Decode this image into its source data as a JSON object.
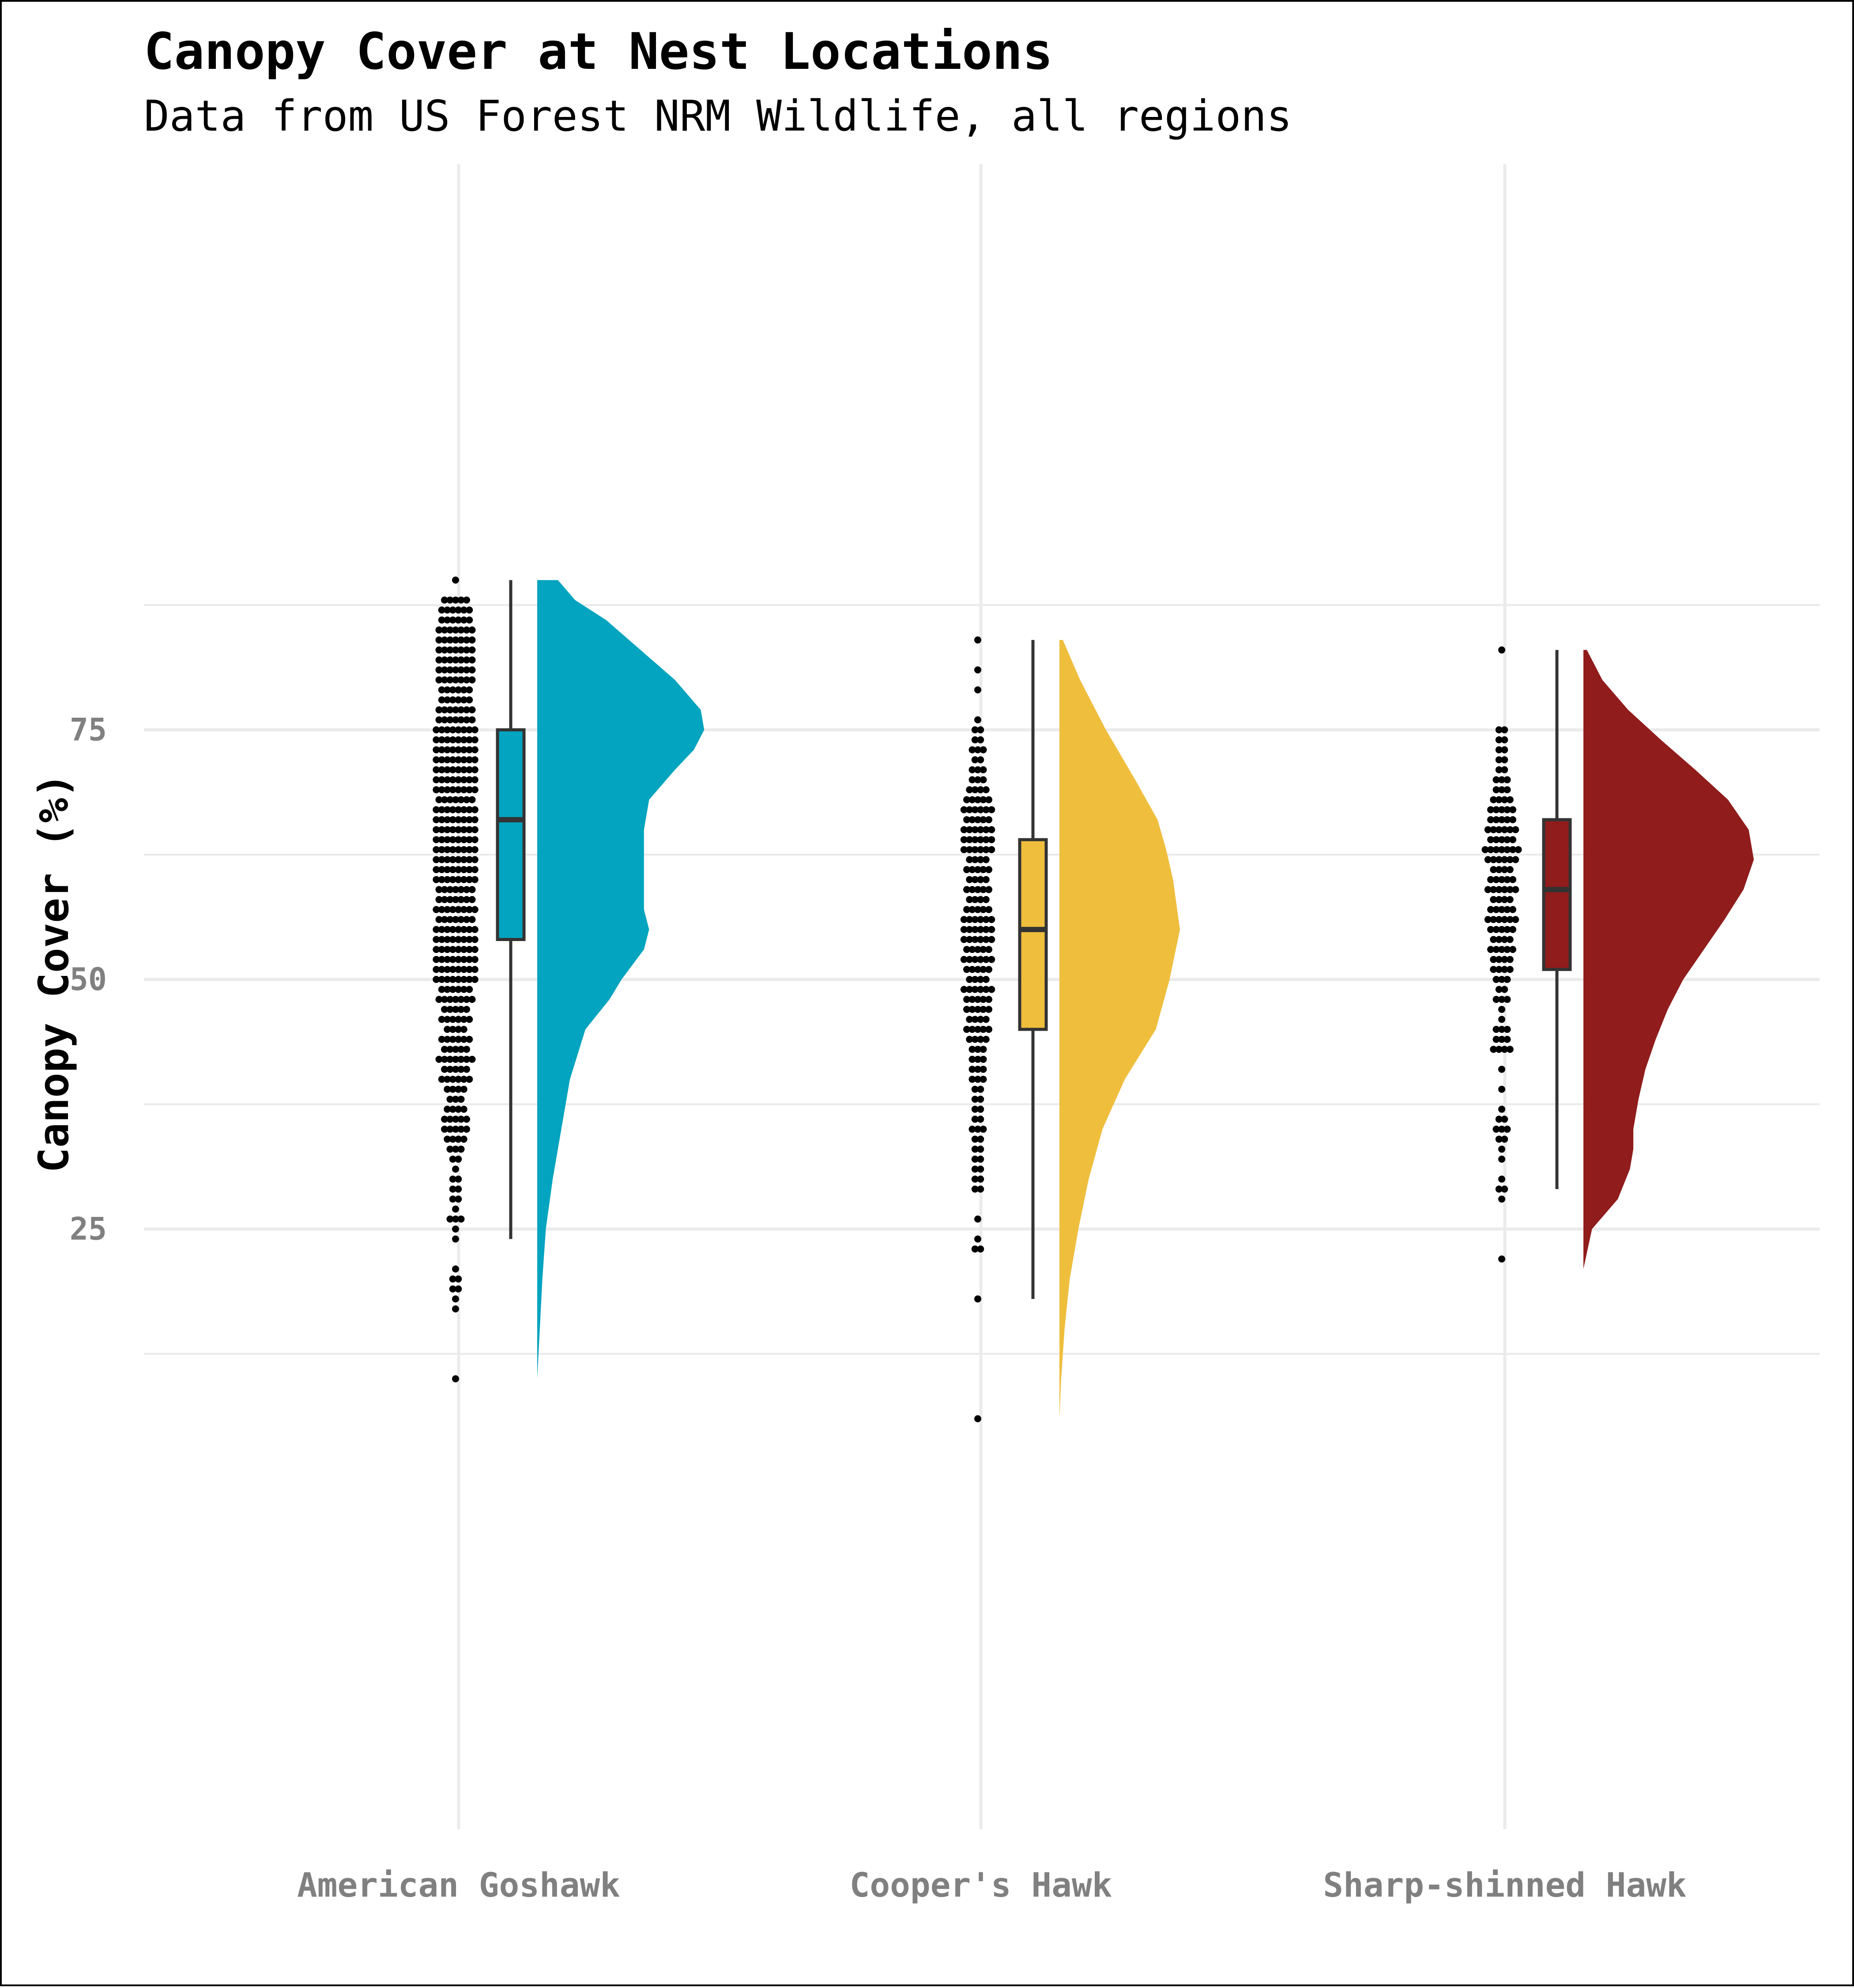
{
  "chart_data": {
    "type": "raincloud",
    "title": "Canopy Cover at Nest Locations",
    "subtitle": "Data from US Forest NRM Wildlife, all regions",
    "xlabel": "",
    "ylabel": "Canopy Cover (%)",
    "ylim": [
      3,
      93
    ],
    "y_ticks": [
      25,
      50,
      75
    ],
    "grid": true,
    "categories": [
      "American Goshawk",
      "Cooper's Hawk",
      "Sharp-shinned Hawk"
    ],
    "series": [
      {
        "category": "American Goshawk",
        "color": "#02A4BF",
        "box": {
          "min": 24,
          "q1": 54,
          "median": 66,
          "q3": 75,
          "max": 90
        },
        "density_range": [
          10,
          90
        ],
        "density": [
          [
            10,
            0.0
          ],
          [
            15,
            0.015
          ],
          [
            20,
            0.03
          ],
          [
            25,
            0.05
          ],
          [
            30,
            0.09
          ],
          [
            35,
            0.14
          ],
          [
            40,
            0.19
          ],
          [
            45,
            0.28
          ],
          [
            48,
            0.42
          ],
          [
            50,
            0.49
          ],
          [
            53,
            0.62
          ],
          [
            55,
            0.65
          ],
          [
            57,
            0.62
          ],
          [
            60,
            0.62
          ],
          [
            62,
            0.62
          ],
          [
            65,
            0.62
          ],
          [
            68,
            0.65
          ],
          [
            71,
            0.8
          ],
          [
            73,
            0.91
          ],
          [
            75,
            0.97
          ],
          [
            77,
            0.95
          ],
          [
            80,
            0.8
          ],
          [
            83,
            0.6
          ],
          [
            86,
            0.4
          ],
          [
            88,
            0.22
          ],
          [
            90,
            0.12
          ]
        ],
        "points": [
          [
            90,
            1
          ],
          [
            88,
            5
          ],
          [
            87,
            6
          ],
          [
            86,
            6
          ],
          [
            85,
            7
          ],
          [
            84,
            7
          ],
          [
            83,
            7
          ],
          [
            82,
            7
          ],
          [
            81,
            7
          ],
          [
            80,
            7
          ],
          [
            79,
            6
          ],
          [
            78,
            6
          ],
          [
            77,
            7
          ],
          [
            76,
            7
          ],
          [
            75,
            8
          ],
          [
            74,
            8
          ],
          [
            73,
            8
          ],
          [
            72,
            8
          ],
          [
            71,
            8
          ],
          [
            70,
            8
          ],
          [
            69,
            8
          ],
          [
            68,
            7
          ],
          [
            67,
            8
          ],
          [
            66,
            8
          ],
          [
            65,
            8
          ],
          [
            64,
            8
          ],
          [
            63,
            8
          ],
          [
            62,
            8
          ],
          [
            61,
            8
          ],
          [
            60,
            8
          ],
          [
            59,
            7
          ],
          [
            58,
            7
          ],
          [
            57,
            8
          ],
          [
            56,
            7
          ],
          [
            55,
            8
          ],
          [
            54,
            8
          ],
          [
            53,
            8
          ],
          [
            52,
            8
          ],
          [
            51,
            8
          ],
          [
            50,
            8
          ],
          [
            49,
            6
          ],
          [
            48,
            7
          ],
          [
            47,
            5
          ],
          [
            46,
            6
          ],
          [
            45,
            4
          ],
          [
            44,
            6
          ],
          [
            43,
            5
          ],
          [
            42,
            7
          ],
          [
            41,
            5
          ],
          [
            40,
            6
          ],
          [
            39,
            4
          ],
          [
            38,
            3
          ],
          [
            37,
            4
          ],
          [
            36,
            5
          ],
          [
            35,
            5
          ],
          [
            34,
            4
          ],
          [
            33,
            3
          ],
          [
            32,
            2
          ],
          [
            31,
            1
          ],
          [
            30,
            2
          ],
          [
            29,
            2
          ],
          [
            28,
            2
          ],
          [
            27,
            1
          ],
          [
            26,
            3
          ],
          [
            25,
            1
          ],
          [
            24,
            1
          ],
          [
            21,
            1
          ],
          [
            20,
            2
          ],
          [
            19,
            2
          ],
          [
            18,
            1
          ],
          [
            17,
            1
          ],
          [
            10,
            1
          ]
        ]
      },
      {
        "category": "Cooper's Hawk",
        "color": "#EFBE3D",
        "box": {
          "min": 18,
          "q1": 45,
          "median": 55,
          "q3": 64,
          "max": 84
        },
        "density_range": [
          6,
          84
        ],
        "density": [
          [
            6,
            0.0
          ],
          [
            10,
            0.01
          ],
          [
            15,
            0.03
          ],
          [
            20,
            0.06
          ],
          [
            25,
            0.11
          ],
          [
            30,
            0.17
          ],
          [
            35,
            0.25
          ],
          [
            40,
            0.38
          ],
          [
            45,
            0.56
          ],
          [
            50,
            0.64
          ],
          [
            55,
            0.7
          ],
          [
            60,
            0.66
          ],
          [
            63,
            0.62
          ],
          [
            66,
            0.57
          ],
          [
            70,
            0.44
          ],
          [
            75,
            0.27
          ],
          [
            80,
            0.12
          ],
          [
            84,
            0.02
          ]
        ],
        "points": [
          [
            84,
            1
          ],
          [
            81,
            1
          ],
          [
            79,
            1
          ],
          [
            76,
            1
          ],
          [
            75,
            2
          ],
          [
            74,
            2
          ],
          [
            73,
            3
          ],
          [
            72,
            2
          ],
          [
            71,
            3
          ],
          [
            70,
            3
          ],
          [
            69,
            4
          ],
          [
            68,
            5
          ],
          [
            67,
            6
          ],
          [
            66,
            5
          ],
          [
            65,
            6
          ],
          [
            64,
            6
          ],
          [
            63,
            6
          ],
          [
            62,
            4
          ],
          [
            61,
            5
          ],
          [
            60,
            4
          ],
          [
            59,
            5
          ],
          [
            58,
            4
          ],
          [
            57,
            5
          ],
          [
            56,
            6
          ],
          [
            55,
            6
          ],
          [
            54,
            6
          ],
          [
            53,
            5
          ],
          [
            52,
            6
          ],
          [
            51,
            5
          ],
          [
            50,
            4
          ],
          [
            49,
            6
          ],
          [
            48,
            5
          ],
          [
            47,
            5
          ],
          [
            46,
            4
          ],
          [
            45,
            5
          ],
          [
            44,
            4
          ],
          [
            43,
            3
          ],
          [
            42,
            3
          ],
          [
            41,
            3
          ],
          [
            40,
            3
          ],
          [
            39,
            2
          ],
          [
            38,
            2
          ],
          [
            37,
            2
          ],
          [
            36,
            2
          ],
          [
            35,
            3
          ],
          [
            34,
            2
          ],
          [
            33,
            2
          ],
          [
            32,
            2
          ],
          [
            31,
            2
          ],
          [
            30,
            2
          ],
          [
            29,
            2
          ],
          [
            26,
            1
          ],
          [
            24,
            1
          ],
          [
            23,
            2
          ],
          [
            18,
            1
          ],
          [
            6,
            1
          ]
        ]
      },
      {
        "category": "Sharp-shinned Hawk",
        "color": "#901C1C",
        "box": {
          "min": 29,
          "q1": 51,
          "median": 59,
          "q3": 66,
          "max": 83
        },
        "density_range": [
          21,
          83
        ],
        "density": [
          [
            21,
            0.0
          ],
          [
            25,
            0.05
          ],
          [
            28,
            0.2
          ],
          [
            31,
            0.27
          ],
          [
            33,
            0.29
          ],
          [
            35,
            0.29
          ],
          [
            38,
            0.32
          ],
          [
            41,
            0.36
          ],
          [
            44,
            0.42
          ],
          [
            47,
            0.49
          ],
          [
            50,
            0.58
          ],
          [
            53,
            0.7
          ],
          [
            56,
            0.82
          ],
          [
            59,
            0.93
          ],
          [
            62,
            0.99
          ],
          [
            65,
            0.96
          ],
          [
            68,
            0.84
          ],
          [
            71,
            0.65
          ],
          [
            74,
            0.45
          ],
          [
            77,
            0.26
          ],
          [
            80,
            0.11
          ],
          [
            83,
            0.02
          ]
        ],
        "points": [
          [
            83,
            1
          ],
          [
            75,
            2
          ],
          [
            74,
            2
          ],
          [
            73,
            2
          ],
          [
            72,
            2
          ],
          [
            71,
            2
          ],
          [
            70,
            3
          ],
          [
            69,
            3
          ],
          [
            68,
            4
          ],
          [
            67,
            5
          ],
          [
            66,
            5
          ],
          [
            65,
            6
          ],
          [
            64,
            5
          ],
          [
            63,
            7
          ],
          [
            62,
            6
          ],
          [
            61,
            4
          ],
          [
            60,
            5
          ],
          [
            59,
            6
          ],
          [
            58,
            4
          ],
          [
            57,
            5
          ],
          [
            56,
            6
          ],
          [
            55,
            5
          ],
          [
            54,
            4
          ],
          [
            53,
            5
          ],
          [
            52,
            4
          ],
          [
            51,
            4
          ],
          [
            50,
            3
          ],
          [
            49,
            2
          ],
          [
            48,
            3
          ],
          [
            47,
            1
          ],
          [
            46,
            1
          ],
          [
            45,
            3
          ],
          [
            44,
            3
          ],
          [
            43,
            4
          ],
          [
            41,
            1
          ],
          [
            39,
            1
          ],
          [
            37,
            1
          ],
          [
            36,
            2
          ],
          [
            35,
            3
          ],
          [
            34,
            2
          ],
          [
            33,
            1
          ],
          [
            32,
            1
          ],
          [
            30,
            1
          ],
          [
            29,
            2
          ],
          [
            28,
            1
          ],
          [
            22,
            1
          ]
        ]
      }
    ]
  }
}
